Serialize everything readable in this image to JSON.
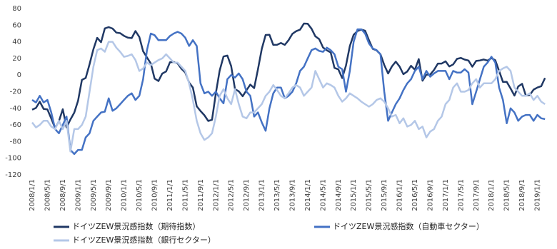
{
  "chart_data": {
    "type": "line",
    "categories": [
      "2008/1/1",
      null,
      null,
      null,
      "2008/5/1",
      null,
      null,
      null,
      "2008/9/1",
      null,
      null,
      null,
      "2009/1/1",
      null,
      null,
      null,
      "2009/5/1",
      null,
      null,
      null,
      "2009/9/1",
      null,
      null,
      null,
      "2010/1/1",
      null,
      null,
      null,
      "2010/5/1",
      null,
      null,
      null,
      "2010/9/1",
      null,
      null,
      null,
      "2011/1/1",
      null,
      null,
      null,
      "2011/5/1",
      null,
      null,
      null,
      "2011/9/1",
      null,
      null,
      null,
      "2012/1/1",
      null,
      null,
      null,
      "2012/5/1",
      null,
      null,
      null,
      "2012/9/1",
      null,
      null,
      null,
      "2013/1/1",
      null,
      null,
      null,
      "2013/5/1",
      null,
      null,
      null,
      "2013/9/1",
      null,
      null,
      null,
      "2014/1/1",
      null,
      null,
      null,
      "2014/5/1",
      null,
      null,
      null,
      "2014/9/1",
      null,
      null,
      null,
      "2015/1/1",
      null,
      null,
      null,
      "2015/5/1",
      null,
      null,
      null,
      "2015/9/1",
      null,
      null,
      null,
      "2016/1/1",
      null,
      null,
      null,
      "2016/5/1",
      null,
      null,
      null,
      "2016/9/1",
      null,
      null,
      null,
      "2017/1/1",
      null,
      null,
      null,
      "2017/5/1",
      null,
      null,
      null,
      "2017/9/1",
      null,
      null,
      null,
      "2018/1/1",
      null,
      null,
      null,
      "2018/5/1",
      null,
      null,
      null,
      "2018/9/1",
      null,
      null,
      null,
      "2019/1/1",
      null,
      null
    ],
    "series": [
      {
        "name": "ドイツZEW景況感指数（期待指数）",
        "color": "#203864",
        "values": [
          -41.6,
          -39.5,
          -32,
          -40.7,
          -41.4,
          -52.4,
          -63.9,
          -55.5,
          -41.1,
          -63,
          -53.5,
          -45.2,
          -31,
          -5.8,
          -3.5,
          13,
          31.1,
          44.8,
          39.5,
          56.1,
          57.7,
          56,
          51.1,
          50.4,
          47.2,
          45.1,
          44.5,
          53,
          45.8,
          28.7,
          21.2,
          14,
          -4.3,
          -7.2,
          1.8,
          4.3,
          15.4,
          15.7,
          14.1,
          7.6,
          3.1,
          -9,
          -15.1,
          -37.6,
          -43.3,
          -48.3,
          -55.2,
          -53.8,
          -21.6,
          5.4,
          22.3,
          23.4,
          10.8,
          -16.9,
          -19.6,
          -25.5,
          -18.2,
          -11.5,
          -15.7,
          6.9,
          31.5,
          48.2,
          48.5,
          36.3,
          36.4,
          38.5,
          36.3,
          42,
          49.6,
          52.8,
          54.6,
          62,
          61.7,
          55.7,
          46.6,
          43.2,
          33.1,
          29.8,
          27.1,
          8.6,
          6.9,
          -3.6,
          11.5,
          34.9,
          48.4,
          53,
          54.8,
          53.3,
          41.9,
          31.5,
          29.7,
          25,
          12.1,
          1.9,
          10.4,
          16.1,
          10.2,
          1,
          4.3,
          11.2,
          6.4,
          19.2,
          -6.8,
          0.5,
          0.5,
          6.2,
          13.8,
          13.8,
          16.6,
          10.4,
          12.8,
          19.5,
          20.6,
          18.6,
          17.5,
          10,
          17,
          17.6,
          18.7,
          17.4,
          20.4,
          17.8,
          5.1,
          -8.2,
          -8.2,
          -16.1,
          -24.7,
          -13.7,
          -10.6,
          -24.7,
          -24.1,
          -17.5,
          -15,
          -13.4,
          -3.6
        ]
      },
      {
        "name": "ドイツZEW景況感指数（自動車セクター）",
        "color": "#4472c4",
        "values": [
          -30,
          -33,
          -25,
          -33,
          -30,
          -45,
          -65,
          -70,
          -60,
          -50,
          -90,
          -95,
          -90,
          -90,
          -75,
          -70,
          -55,
          -50,
          -45,
          -44,
          -28,
          -43,
          -40,
          -35,
          -30,
          -25,
          -22,
          -30,
          -25,
          -5,
          30,
          50,
          48,
          42,
          42,
          42,
          47,
          50,
          52,
          50,
          45,
          35,
          42,
          35,
          -10,
          -22,
          -20,
          -25,
          -20,
          -28,
          -34,
          -5,
          0,
          -3,
          2,
          -5,
          -20,
          -25,
          -50,
          -45,
          -57,
          -67,
          -40,
          -22,
          -15,
          -15,
          -28,
          -25,
          -20,
          -10,
          5,
          10,
          20,
          30,
          32,
          29,
          28,
          33,
          30,
          25,
          10,
          7,
          -20,
          5,
          40,
          55,
          55,
          50,
          38,
          32,
          30,
          25,
          -20,
          -55,
          -45,
          -35,
          -28,
          -18,
          -10,
          -5,
          5,
          10,
          -5,
          5,
          -2,
          2,
          5,
          5,
          5,
          -5,
          5,
          3,
          3,
          7,
          3,
          -35,
          -20,
          -5,
          10,
          15,
          22,
          15,
          -15,
          -30,
          -58,
          -40,
          -45,
          -55,
          -50,
          -48,
          -48,
          -55,
          -48,
          -52,
          -53
        ]
      },
      {
        "name": "ドイツZEW景況感指数（銀行セクター）",
        "color": "#b4c7e7",
        "values": [
          -57,
          -63,
          -60,
          -55,
          -55,
          -62,
          -65,
          -55,
          -65,
          -55,
          -92,
          -65,
          -65,
          -60,
          -50,
          -20,
          10,
          30,
          32,
          28,
          40,
          40,
          33,
          28,
          22,
          23,
          25,
          18,
          5,
          8,
          15,
          12,
          15,
          18,
          20,
          25,
          20,
          15,
          15,
          10,
          5,
          -10,
          -30,
          -55,
          -70,
          -78,
          -75,
          -70,
          -50,
          -25,
          -17,
          -28,
          -35,
          -17,
          -35,
          -50,
          -52,
          -45,
          -45,
          -40,
          -35,
          -25,
          -20,
          -12,
          -18,
          -25,
          -28,
          -22,
          -15,
          -12,
          -15,
          -25,
          -20,
          -15,
          5,
          -5,
          -15,
          -10,
          -12,
          -15,
          -25,
          -32,
          -28,
          -22,
          -25,
          -28,
          -32,
          -35,
          -38,
          -35,
          -30,
          -28,
          -32,
          -40,
          -50,
          -48,
          -58,
          -52,
          -62,
          -60,
          -55,
          -65,
          -62,
          -75,
          -68,
          -65,
          -55,
          -50,
          -35,
          -30,
          -15,
          -10,
          -20,
          -20,
          -18,
          -10,
          -5,
          -15,
          -10,
          -10,
          -10,
          -5,
          5,
          8,
          10,
          5,
          -15,
          -20,
          -25,
          -25,
          -22,
          -30,
          -25,
          -32,
          -35
        ]
      }
    ],
    "ylim": [
      -120,
      80
    ],
    "yticks": [
      -120,
      -100,
      -80,
      -60,
      -40,
      -20,
      0,
      20,
      40,
      60,
      80
    ],
    "grid": false,
    "legend": "bottom"
  }
}
